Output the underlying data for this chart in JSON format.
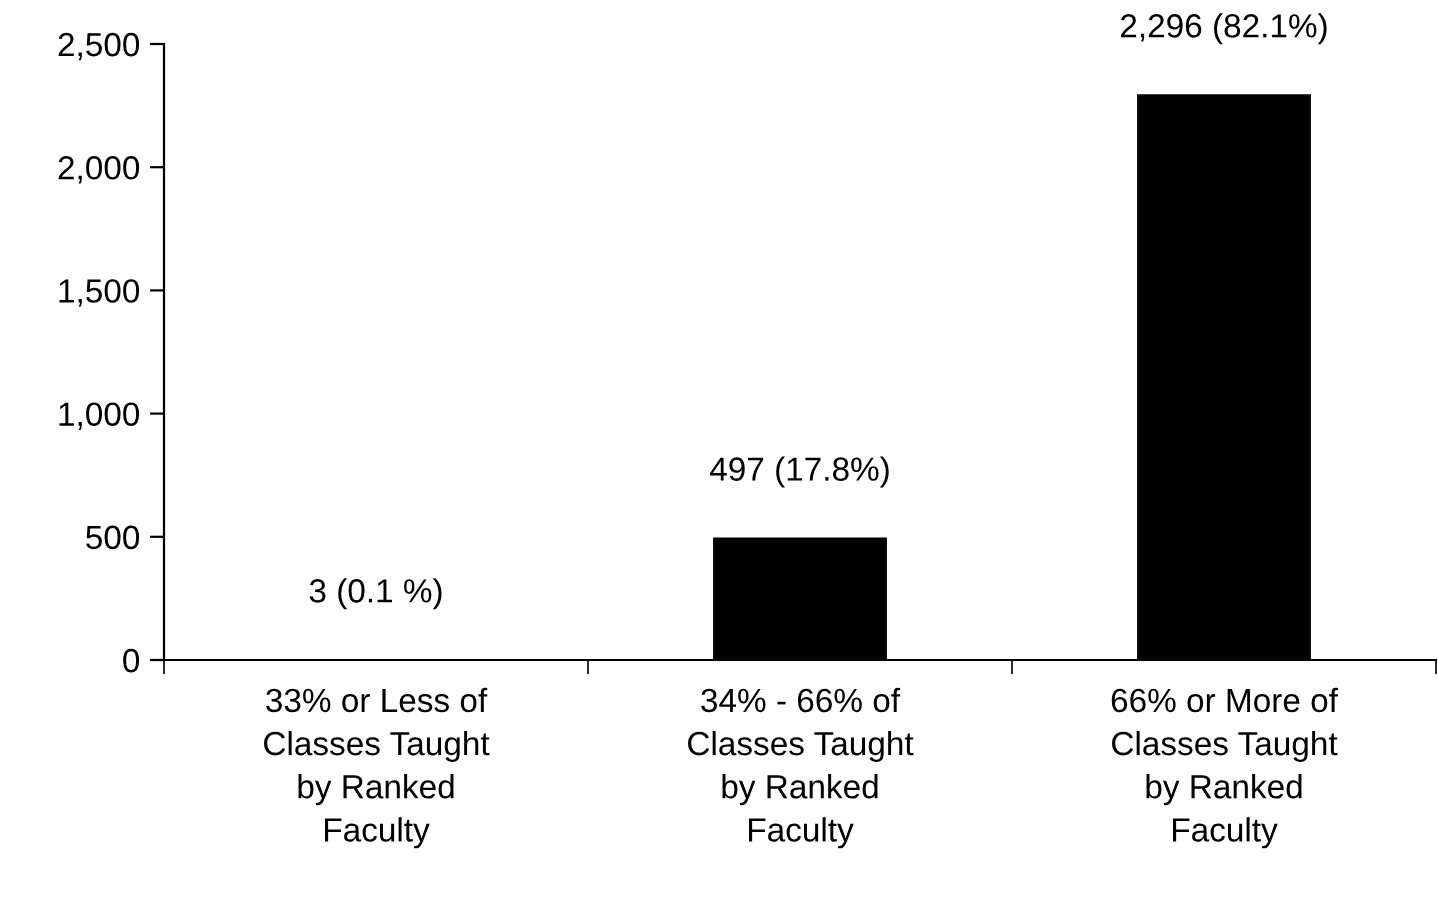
{
  "chart_data": {
    "type": "bar",
    "categories": [
      "33% or Less of\nClasses Taught\nby Ranked\nFaculty",
      "34% - 66% of\nClasses Taught\nby Ranked\nFaculty",
      "66% or More of\nClasses Taught\nby Ranked\nFaculty"
    ],
    "values": [
      3,
      497,
      2296
    ],
    "value_labels": [
      "3 (0.1 %)",
      "497 (17.8%)",
      "2,296 (82.1%)"
    ],
    "color": "#000000",
    "ylim": [
      0,
      2500
    ],
    "yticks": [
      {
        "value": 0,
        "label": "0"
      },
      {
        "value": 500,
        "label": "500"
      },
      {
        "value": 1000,
        "label": "1,000"
      },
      {
        "value": 1500,
        "label": "1,500"
      },
      {
        "value": 2000,
        "label": "2,000"
      },
      {
        "value": 2500,
        "label": "2,500"
      }
    ],
    "grid": false,
    "legend": false
  }
}
